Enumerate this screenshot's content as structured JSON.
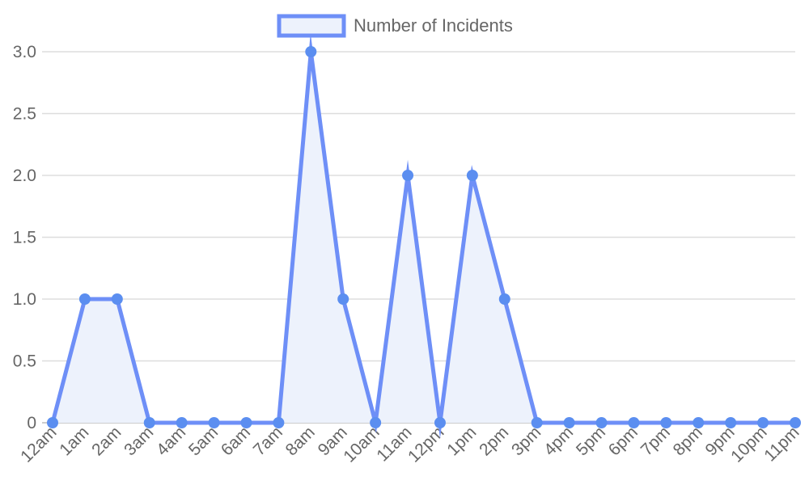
{
  "chart_data": {
    "type": "area",
    "title": "",
    "xlabel": "",
    "ylabel": "",
    "categories": [
      "12am",
      "1am",
      "2am",
      "3am",
      "4am",
      "5am",
      "6am",
      "7am",
      "8am",
      "9am",
      "10am",
      "11am",
      "12pm",
      "1pm",
      "2pm",
      "3pm",
      "4pm",
      "5pm",
      "6pm",
      "7pm",
      "8pm",
      "9pm",
      "10pm",
      "11pm"
    ],
    "series": [
      {
        "name": "Number of Incidents",
        "values": [
          0,
          1,
          1,
          0,
          0,
          0,
          0,
          0,
          3,
          1,
          0,
          2,
          0,
          2,
          1,
          0,
          0,
          0,
          0,
          0,
          0,
          0,
          0,
          0
        ]
      }
    ],
    "ylim": [
      0,
      3
    ],
    "yticks": [
      "0",
      "0.5",
      "1.0",
      "1.5",
      "2.0",
      "2.5",
      "3.0"
    ],
    "grid": true,
    "legend_position": "top",
    "colors": {
      "line": "#6e8ff7",
      "fill": "#edf2fc",
      "point": "#5b8ef0"
    }
  }
}
